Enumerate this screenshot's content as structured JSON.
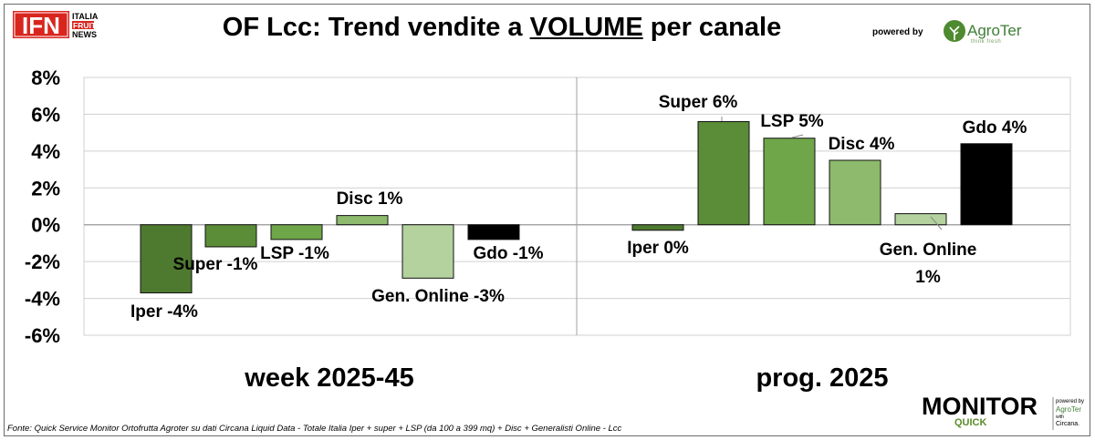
{
  "header": {
    "logo_ifn": "IFN",
    "logo_ifn_sub": [
      "ITALIA",
      "FRUIT",
      "NEWS"
    ],
    "title_prefix": "OF Lcc: Trend vendite a ",
    "title_underlined": "VOLUME",
    "title_suffix": " per canale",
    "powered_by": "powered by",
    "sponsor_name": "AgroTer",
    "sponsor_tagline": "think fresh"
  },
  "footer": {
    "source": "Fonte: Quick Service Monitor Ortofrutta Agroter su dati Circana Liquid Data - Totale Italia Iper + super + LSP (da 100 a 399 mq) + Disc + Generalisti Online - Lcc",
    "brand_main": "MONITOR",
    "brand_sub": "QUICK",
    "brand_powered": "powered by",
    "brand_agroter": "AgroTer",
    "brand_with": "with",
    "brand_circana": "Circana."
  },
  "colors": {
    "Iper": "#4e7a30",
    "Super": "#5b8c37",
    "LSP": "#6fa64a",
    "Disc": "#8dba6c",
    "Gen. Online": "#b3d29d",
    "Gdo": "#000000",
    "grid": "#d0d0d0",
    "panel_divider": "#a0a0a0"
  },
  "chart_data": {
    "type": "bar",
    "ylim": [
      -6,
      8
    ],
    "yticks": [
      "8%",
      "6%",
      "4%",
      "2%",
      "0%",
      "-2%",
      "-4%",
      "-6%"
    ],
    "ytick_values": [
      8,
      6,
      4,
      2,
      0,
      -2,
      -4,
      -6
    ],
    "grid": true,
    "categories": [
      "Iper",
      "Super",
      "LSP",
      "Disc",
      "Gen. Online",
      "Gdo"
    ],
    "panels": [
      {
        "title": "week 2025-45",
        "values": [
          -3.7,
          -1.2,
          -0.8,
          0.5,
          -2.9,
          -0.8
        ],
        "labels": [
          "Iper -4%",
          "Super -1%",
          "LSP -1%",
          "Disc 1%",
          "Gen. Online -3%",
          "Gdo -1%"
        ]
      },
      {
        "title": "prog. 2025",
        "values": [
          -0.3,
          5.6,
          4.7,
          3.5,
          0.6,
          4.4
        ],
        "labels": [
          "Iper 0%",
          "Super 6%",
          "LSP 5%",
          "Disc 4%",
          "Gen. Online\n1%",
          "Gdo 4%"
        ]
      }
    ]
  }
}
